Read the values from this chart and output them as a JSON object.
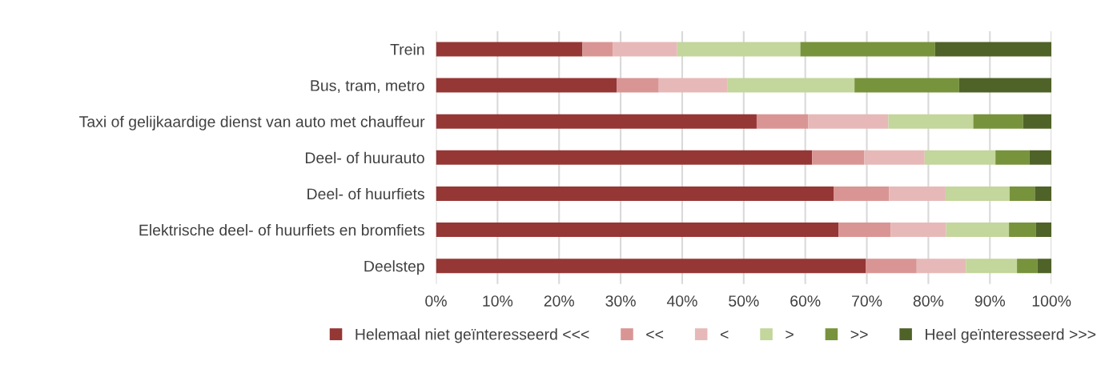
{
  "chart_data": {
    "type": "bar",
    "orientation": "horizontal",
    "stacked": true,
    "categories": [
      "Trein",
      "Bus, tram, metro",
      "Taxi of gelijkaardige dienst van auto met chauffeur",
      "Deel- of huurauto",
      "Deel- of huurfiets",
      "Elektrische deel- of huurfiets en bromfiets",
      "Deelstep"
    ],
    "series": [
      {
        "name": "Helemaal niet geïnteresseerd <<<",
        "color": "#953735",
        "values": [
          23.8,
          29.4,
          52.1,
          61.1,
          64.6,
          65.4,
          69.8
        ]
      },
      {
        "name": "<<",
        "color": "#d99594",
        "values": [
          4.9,
          6.8,
          8.4,
          8.5,
          9.0,
          8.5,
          8.3
        ]
      },
      {
        "name": "<",
        "color": "#e6b9b8",
        "values": [
          10.5,
          11.2,
          13.0,
          9.8,
          9.2,
          9.0,
          8.0
        ]
      },
      {
        "name": ">",
        "color": "#c3d69b",
        "values": [
          20.0,
          20.6,
          13.8,
          11.5,
          10.4,
          10.2,
          8.3
        ]
      },
      {
        "name": ">>",
        "color": "#77933c",
        "values": [
          21.9,
          17.0,
          8.1,
          5.5,
          4.1,
          4.4,
          3.3
        ]
      },
      {
        "name": "Heel geïnteresseerd >>>",
        "color": "#4f6228",
        "values": [
          18.9,
          15.0,
          4.6,
          3.6,
          2.7,
          2.5,
          2.3
        ]
      }
    ],
    "xlim": [
      0,
      100
    ],
    "xticks": [
      {
        "value": 0,
        "label": "0%"
      },
      {
        "value": 10,
        "label": "10%"
      },
      {
        "value": 20,
        "label": "20%"
      },
      {
        "value": 30,
        "label": "30%"
      },
      {
        "value": 40,
        "label": "40%"
      },
      {
        "value": 50,
        "label": "50%"
      },
      {
        "value": 60,
        "label": "60%"
      },
      {
        "value": 70,
        "label": "70%"
      },
      {
        "value": 80,
        "label": "80%"
      },
      {
        "value": 90,
        "label": "90%"
      },
      {
        "value": 100,
        "label": "100%"
      }
    ],
    "grid": "x",
    "legend": "bottom"
  }
}
